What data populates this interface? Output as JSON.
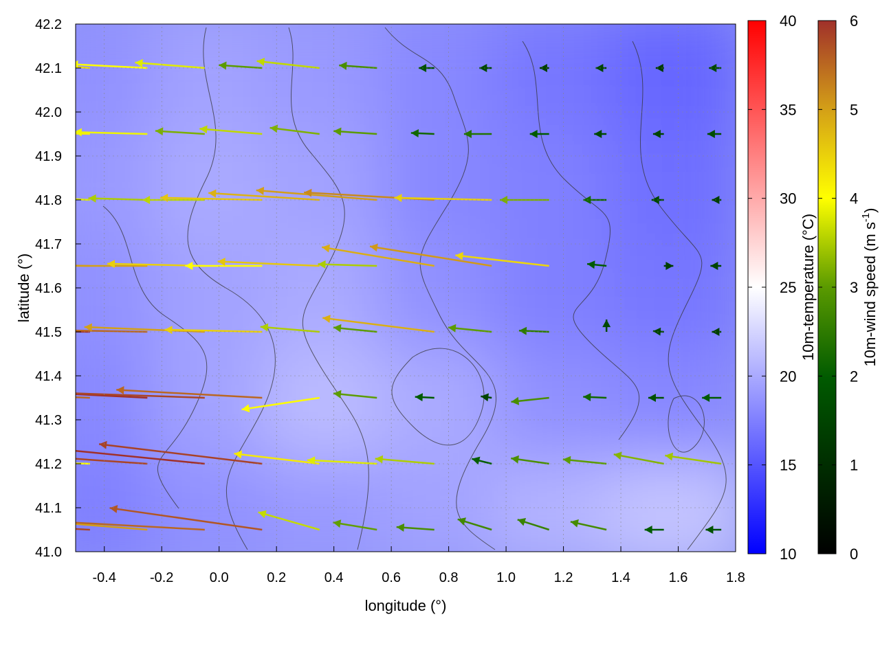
{
  "chart_data": {
    "type": "vector-field",
    "xlabel": "longitude (°)",
    "ylabel": "latitude (°)",
    "xlim": [
      -0.5,
      1.8
    ],
    "ylim": [
      41.0,
      42.2
    ],
    "xticks": [
      "-0.4",
      "-0.2",
      "0.0",
      "0.2",
      "0.4",
      "0.6",
      "0.8",
      "1.0",
      "1.2",
      "1.4",
      "1.6",
      "1.8"
    ],
    "xtick_values": [
      -0.4,
      -0.2,
      0.0,
      0.2,
      0.4,
      0.6,
      0.8,
      1.0,
      1.2,
      1.4,
      1.6,
      1.8
    ],
    "yticks": [
      "41.0",
      "41.1",
      "41.2",
      "41.3",
      "41.4",
      "41.5",
      "41.6",
      "41.7",
      "41.8",
      "41.9",
      "42.0",
      "42.1",
      "42.2"
    ],
    "ytick_values": [
      41.0,
      41.1,
      41.2,
      41.3,
      41.4,
      41.5,
      41.6,
      41.7,
      41.8,
      41.9,
      42.0,
      42.1,
      42.2
    ],
    "grid": true,
    "temperature_colorbar": {
      "label": "10m-temperature (°C)",
      "range": [
        10,
        40
      ],
      "ticks": [
        "10",
        "15",
        "20",
        "25",
        "30",
        "35",
        "40"
      ],
      "tick_values": [
        10,
        15,
        20,
        25,
        30,
        35,
        40
      ],
      "colors": [
        "#0000ff",
        "#ffffff",
        "#ff0000"
      ]
    },
    "wind_colorbar": {
      "label": "10m-wind speed (m s-1)",
      "label_main": "10m-wind speed (m s",
      "label_sup": "-1",
      "label_end": ")",
      "range": [
        0,
        6
      ],
      "ticks": [
        "0",
        "1",
        "2",
        "3",
        "4",
        "5",
        "6"
      ],
      "tick_values": [
        0,
        1,
        2,
        3,
        4,
        5,
        6
      ],
      "colors": [
        "#000000",
        "#005500",
        "#007000",
        "#ffff00",
        "#d4a017",
        "#a52a2a"
      ]
    },
    "temperature_field": {
      "lons": [
        -0.4,
        0.0,
        0.4,
        0.8,
        1.2,
        1.6
      ],
      "lats": [
        41.1,
        41.35,
        41.6,
        41.85,
        42.1
      ],
      "values": [
        [
          17.5,
          18.5,
          19.0,
          19.5,
          20.5,
          21.5
        ],
        [
          18.0,
          19.5,
          21.0,
          20.0,
          18.5,
          18.0
        ],
        [
          18.5,
          19.5,
          20.0,
          18.5,
          17.5,
          17.0
        ],
        [
          19.0,
          20.0,
          19.5,
          18.0,
          17.5,
          16.5
        ],
        [
          18.5,
          19.5,
          19.0,
          18.0,
          17.0,
          16.0
        ]
      ]
    },
    "vectors": [
      [
        -0.45,
        41.05,
        -5.8,
        0.3
      ],
      [
        -0.25,
        41.05,
        -5.0,
        0.4
      ],
      [
        -0.05,
        41.05,
        -5.5,
        0.3
      ],
      [
        0.15,
        41.05,
        -5.6,
        0.8
      ],
      [
        0.35,
        41.05,
        -3.5,
        1.0
      ],
      [
        0.55,
        41.05,
        -3.0,
        0.5
      ],
      [
        0.75,
        41.05,
        -2.8,
        0.2
      ],
      [
        0.95,
        41.05,
        -2.6,
        0.8
      ],
      [
        1.15,
        41.05,
        -2.5,
        0.8
      ],
      [
        1.35,
        41.05,
        -2.7,
        0.6
      ],
      [
        1.55,
        41.05,
        -2.0,
        0.0
      ],
      [
        1.75,
        41.05,
        -1.8,
        0.0
      ],
      [
        -0.45,
        41.2,
        -4.0,
        0.1
      ],
      [
        -0.25,
        41.2,
        -5.8,
        0.4
      ],
      [
        -0.05,
        41.2,
        -6.0,
        0.6
      ],
      [
        0.15,
        41.2,
        -5.8,
        0.7
      ],
      [
        0.35,
        41.2,
        -4.2,
        0.5
      ],
      [
        0.55,
        41.2,
        -3.8,
        0.2
      ],
      [
        0.75,
        41.2,
        -3.5,
        0.3
      ],
      [
        0.95,
        41.2,
        -2.0,
        0.5
      ],
      [
        1.15,
        41.2,
        -2.8,
        0.4
      ],
      [
        1.35,
        41.2,
        -3.0,
        0.3
      ],
      [
        1.55,
        41.2,
        -3.2,
        0.6
      ],
      [
        1.75,
        41.2,
        -3.4,
        0.5
      ],
      [
        -0.45,
        41.35,
        -5.5,
        0.2
      ],
      [
        -0.25,
        41.35,
        -6.0,
        0.3
      ],
      [
        -0.05,
        41.35,
        -5.8,
        0.2
      ],
      [
        0.15,
        41.35,
        -5.5,
        0.3
      ],
      [
        0.35,
        41.35,
        -4.0,
        -0.6
      ],
      [
        0.55,
        41.35,
        -3.0,
        0.3
      ],
      [
        0.75,
        41.35,
        -2.0,
        0.1
      ],
      [
        0.95,
        41.35,
        -1.5,
        0.2
      ],
      [
        1.15,
        41.35,
        -2.8,
        -0.3
      ],
      [
        1.35,
        41.35,
        -2.2,
        0.1
      ],
      [
        1.55,
        41.35,
        -1.8,
        0.0
      ],
      [
        1.75,
        41.35,
        -2.0,
        0.0
      ],
      [
        -0.45,
        41.5,
        -6.0,
        0.1
      ],
      [
        -0.25,
        41.5,
        -5.5,
        0.1
      ],
      [
        -0.05,
        41.5,
        -5.0,
        0.2
      ],
      [
        0.15,
        41.5,
        -4.5,
        0.1
      ],
      [
        0.35,
        41.5,
        -3.5,
        0.3
      ],
      [
        0.55,
        41.5,
        -3.0,
        0.3
      ],
      [
        0.75,
        41.5,
        -4.8,
        0.6
      ],
      [
        0.95,
        41.5,
        -3.0,
        0.3
      ],
      [
        1.15,
        41.5,
        -2.5,
        0.1
      ],
      [
        1.35,
        41.5,
        0.0,
        1.6
      ],
      [
        1.55,
        41.5,
        -1.5,
        0.1
      ],
      [
        1.75,
        41.5,
        -1.4,
        0.0
      ],
      [
        -0.45,
        41.65,
        -5.2,
        0.1
      ],
      [
        -0.25,
        41.65,
        -5.0,
        0.0
      ],
      [
        -0.05,
        41.65,
        -4.5,
        0.1
      ],
      [
        0.15,
        41.65,
        -4.0,
        0.0
      ],
      [
        0.35,
        41.65,
        -4.6,
        0.2
      ],
      [
        0.55,
        41.65,
        -3.5,
        0.1
      ],
      [
        0.75,
        41.65,
        -4.8,
        0.8
      ],
      [
        0.95,
        41.65,
        -5.0,
        0.8
      ],
      [
        1.15,
        41.65,
        -4.4,
        0.5
      ],
      [
        1.35,
        41.65,
        -2.0,
        0.2
      ],
      [
        1.55,
        41.65,
        1.4,
        0.0
      ],
      [
        1.75,
        41.65,
        -1.5,
        0.0
      ],
      [
        -0.45,
        41.8,
        -3.8,
        0.2
      ],
      [
        -0.25,
        41.8,
        -3.5,
        0.1
      ],
      [
        -0.05,
        41.8,
        -3.6,
        0.0
      ],
      [
        0.15,
        41.8,
        -4.6,
        0.1
      ],
      [
        0.35,
        41.8,
        -4.8,
        0.3
      ],
      [
        0.55,
        41.8,
        -5.0,
        0.4
      ],
      [
        0.75,
        41.8,
        -5.2,
        0.3
      ],
      [
        0.95,
        41.8,
        -4.5,
        0.1
      ],
      [
        1.15,
        41.8,
        -3.2,
        0.0
      ],
      [
        1.35,
        41.8,
        -2.2,
        0.0
      ],
      [
        1.55,
        41.8,
        -1.6,
        0.0
      ],
      [
        1.75,
        41.8,
        -1.4,
        0.0
      ],
      [
        -0.45,
        41.95,
        -4.2,
        0.1
      ],
      [
        -0.25,
        41.95,
        -3.9,
        0.1
      ],
      [
        -0.05,
        41.95,
        -3.2,
        0.2
      ],
      [
        0.15,
        41.95,
        -3.6,
        0.3
      ],
      [
        0.35,
        41.95,
        -3.2,
        0.4
      ],
      [
        0.55,
        41.95,
        -3.0,
        0.2
      ],
      [
        0.75,
        41.95,
        -2.2,
        0.1
      ],
      [
        0.95,
        41.95,
        -2.4,
        0.0
      ],
      [
        1.15,
        41.95,
        -2.0,
        0.0
      ],
      [
        1.35,
        41.95,
        -1.6,
        0.0
      ],
      [
        1.55,
        41.95,
        -1.5,
        0.0
      ],
      [
        1.75,
        41.95,
        -1.7,
        0.0
      ],
      [
        -0.45,
        42.1,
        -4.4,
        0.3
      ],
      [
        -0.25,
        42.1,
        -4.0,
        0.2
      ],
      [
        -0.05,
        42.1,
        -3.8,
        0.3
      ],
      [
        0.15,
        42.1,
        -3.0,
        0.2
      ],
      [
        0.35,
        42.1,
        -3.6,
        0.4
      ],
      [
        0.55,
        42.1,
        -2.8,
        0.2
      ],
      [
        0.75,
        42.1,
        -1.8,
        0.0
      ],
      [
        0.95,
        42.1,
        -1.6,
        0.0
      ],
      [
        1.15,
        42.1,
        -1.4,
        0.0
      ],
      [
        1.35,
        42.1,
        -1.5,
        0.0
      ],
      [
        1.55,
        42.1,
        -1.3,
        0.0
      ],
      [
        1.75,
        42.1,
        -1.6,
        0.0
      ]
    ]
  }
}
